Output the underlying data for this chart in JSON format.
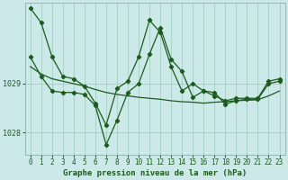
{
  "background_color": "#cce8e8",
  "plot_bg_color": "#cce8e8",
  "grid_color": "#99ccbb",
  "line_color": "#1a5c1a",
  "marker_color": "#1a5c1a",
  "title": "Graphe pression niveau de la mer (hPa)",
  "yticks": [
    1028,
    1029
  ],
  "ylim": [
    1027.55,
    1030.65
  ],
  "xlim": [
    -0.5,
    23.5
  ],
  "xticks": [
    0,
    1,
    2,
    3,
    4,
    5,
    6,
    7,
    8,
    9,
    10,
    11,
    12,
    13,
    14,
    15,
    16,
    17,
    18,
    19,
    20,
    21,
    22,
    23
  ],
  "line1_y": [
    1030.55,
    1030.25,
    1029.55,
    1029.15,
    1029.1,
    1028.95,
    1028.6,
    1028.15,
    1028.9,
    1029.05,
    1029.55,
    1030.3,
    1030.05,
    1029.35,
    1028.85,
    1029.0,
    1028.85,
    1028.75,
    1028.65,
    1028.7,
    1028.7,
    1028.7,
    1029.05,
    1029.1
  ],
  "line2_y": [
    1029.35,
    1029.2,
    1029.1,
    1029.05,
    1029.0,
    1028.95,
    1028.88,
    1028.82,
    1028.78,
    1028.75,
    1028.72,
    1028.7,
    1028.68,
    1028.65,
    1028.63,
    1028.62,
    1028.6,
    1028.62,
    1028.63,
    1028.65,
    1028.66,
    1028.67,
    1028.75,
    1028.85
  ],
  "line3_y": [
    1029.55,
    1029.15,
    1028.85,
    1028.82,
    1028.82,
    1028.78,
    1028.55,
    1027.75,
    1028.25,
    1028.82,
    1029.0,
    1029.6,
    1030.15,
    1029.5,
    1029.25,
    1028.72,
    1028.85,
    1028.82,
    1028.58,
    1028.65,
    1028.68,
    1028.68,
    1029.0,
    1029.05
  ]
}
